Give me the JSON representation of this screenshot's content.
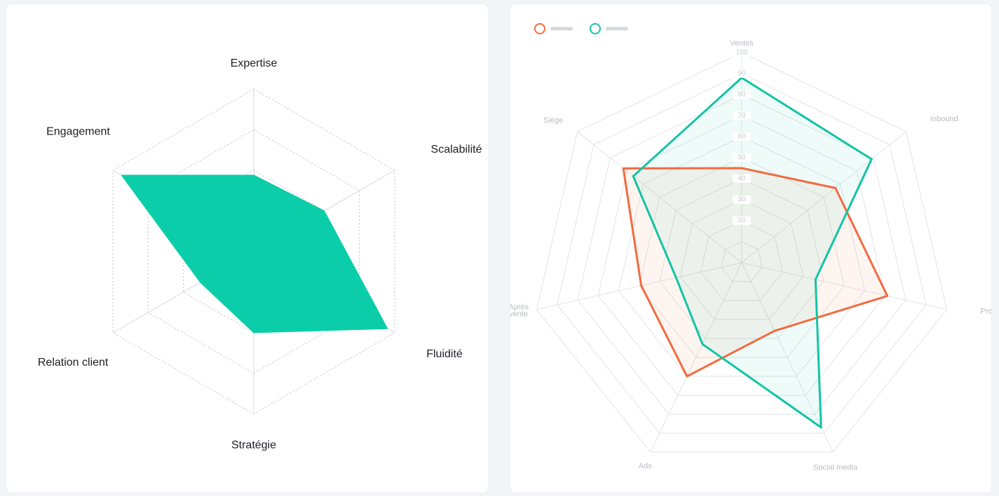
{
  "chart_data": [
    {
      "type": "radar",
      "title": "",
      "axes": [
        "Expertise",
        "Scalabilité",
        "Fluidité",
        "Stratégie",
        "Relation client",
        "Engagement"
      ],
      "max": 100,
      "grid_levels": [
        25,
        50,
        75,
        100
      ],
      "grid": "dotted",
      "series": [
        {
          "name": "",
          "values": [
            47,
            50,
            95,
            50,
            38,
            94
          ],
          "color": "#0ccda9",
          "fill": "#0ccda9",
          "fill_opacity": 1
        }
      ]
    },
    {
      "type": "radar",
      "title": "",
      "axes": [
        "Ventes",
        "Inbound",
        "Production",
        "Social media",
        "Ads",
        "Après vente",
        "Siège"
      ],
      "tick_labels": [
        "20",
        "30",
        "40",
        "50",
        "60",
        "70",
        "80",
        "90",
        "100"
      ],
      "max": 100,
      "grid_levels": [
        10,
        20,
        30,
        40,
        50,
        60,
        70,
        80,
        90,
        100
      ],
      "grid": "solid",
      "legend": "top-left",
      "series": [
        {
          "name": "",
          "values": [
            45,
            57,
            71,
            36,
            60,
            49,
            72
          ],
          "color": "#f26b3f",
          "fill": "#f26b3f",
          "fill_opacity": 0.07
        },
        {
          "name": "",
          "values": [
            88,
            79,
            36,
            87,
            43,
            32,
            66
          ],
          "color": "#12c4a5",
          "fill": "#12c4a5",
          "fill_opacity": 0.07
        }
      ]
    }
  ]
}
